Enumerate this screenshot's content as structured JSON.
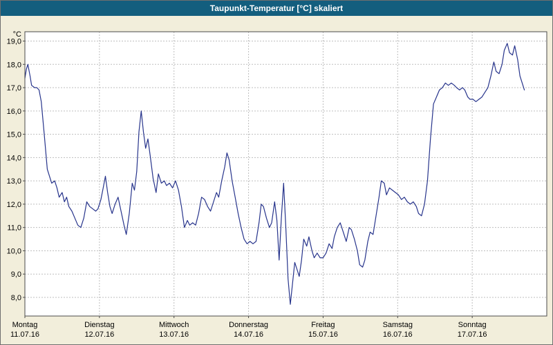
{
  "window": {
    "title": "Taupunkt-Temperatur [°C] skaliert"
  },
  "colors": {
    "titlebar_bg": "#135E7E",
    "title_text": "#FFFFFF",
    "chart_bg": "#F2EEDB",
    "plot_bg": "#FFFFFF",
    "grid": "#BDBDBD",
    "plot_border": "#4a4a4a",
    "axis_text": "#000000",
    "line": "#26338B"
  },
  "chart_data": {
    "type": "line",
    "title": "Taupunkt-Temperatur [°C] skaliert",
    "y_unit_label": "°C",
    "ylim": [
      7.2,
      19.4
    ],
    "xlim_days": [
      0,
      7
    ],
    "grid": "dashed",
    "legend": "none",
    "y_ticks": [
      8,
      9,
      10,
      11,
      12,
      13,
      14,
      15,
      16,
      17,
      18,
      19
    ],
    "y_tick_labels": [
      "8,0",
      "9,0",
      "10,0",
      "11,0",
      "12,0",
      "13,0",
      "14,0",
      "15,0",
      "16,0",
      "17,0",
      "18,0",
      "19,0"
    ],
    "x_days": [
      {
        "name": "Montag",
        "date": "11.07.16"
      },
      {
        "name": "Dienstag",
        "date": "12.07.16"
      },
      {
        "name": "Mittwoch",
        "date": "13.07.16"
      },
      {
        "name": "Donnerstag",
        "date": "14.07.16"
      },
      {
        "name": "Freitag",
        "date": "15.07.16"
      },
      {
        "name": "Samstag",
        "date": "16.07.16"
      },
      {
        "name": "Sonntag",
        "date": "17.07.16"
      }
    ],
    "series": [
      {
        "name": "Taupunkt-Temperatur",
        "color": "#26338B",
        "points": [
          [
            0.0,
            17.4
          ],
          [
            0.02,
            17.8
          ],
          [
            0.04,
            18.0
          ],
          [
            0.07,
            17.5
          ],
          [
            0.09,
            17.1
          ],
          [
            0.13,
            17.0
          ],
          [
            0.16,
            17.0
          ],
          [
            0.19,
            16.9
          ],
          [
            0.22,
            16.4
          ],
          [
            0.26,
            15.0
          ],
          [
            0.3,
            13.5
          ],
          [
            0.33,
            13.2
          ],
          [
            0.36,
            12.9
          ],
          [
            0.4,
            13.0
          ],
          [
            0.43,
            12.7
          ],
          [
            0.46,
            12.3
          ],
          [
            0.5,
            12.5
          ],
          [
            0.53,
            12.1
          ],
          [
            0.56,
            12.3
          ],
          [
            0.59,
            11.9
          ],
          [
            0.63,
            11.7
          ],
          [
            0.67,
            11.4
          ],
          [
            0.71,
            11.1
          ],
          [
            0.75,
            11.0
          ],
          [
            0.79,
            11.4
          ],
          [
            0.83,
            12.1
          ],
          [
            0.87,
            11.9
          ],
          [
            0.91,
            11.8
          ],
          [
            0.95,
            11.7
          ],
          [
            0.98,
            11.8
          ],
          [
            1.02,
            12.2
          ],
          [
            1.05,
            12.7
          ],
          [
            1.08,
            13.2
          ],
          [
            1.11,
            12.5
          ],
          [
            1.14,
            11.9
          ],
          [
            1.17,
            11.6
          ],
          [
            1.21,
            12.0
          ],
          [
            1.25,
            12.3
          ],
          [
            1.29,
            11.7
          ],
          [
            1.33,
            11.1
          ],
          [
            1.36,
            10.7
          ],
          [
            1.4,
            11.6
          ],
          [
            1.44,
            12.9
          ],
          [
            1.47,
            12.6
          ],
          [
            1.5,
            13.4
          ],
          [
            1.53,
            15.1
          ],
          [
            1.56,
            16.0
          ],
          [
            1.59,
            15.1
          ],
          [
            1.62,
            14.4
          ],
          [
            1.65,
            14.8
          ],
          [
            1.68,
            14.1
          ],
          [
            1.72,
            13.1
          ],
          [
            1.76,
            12.5
          ],
          [
            1.79,
            13.3
          ],
          [
            1.83,
            12.9
          ],
          [
            1.87,
            13.0
          ],
          [
            1.9,
            12.8
          ],
          [
            1.94,
            12.9
          ],
          [
            1.98,
            12.7
          ],
          [
            2.02,
            13.0
          ],
          [
            2.06,
            12.6
          ],
          [
            2.1,
            11.9
          ],
          [
            2.14,
            11.0
          ],
          [
            2.18,
            11.3
          ],
          [
            2.21,
            11.1
          ],
          [
            2.25,
            11.2
          ],
          [
            2.29,
            11.1
          ],
          [
            2.33,
            11.6
          ],
          [
            2.37,
            12.3
          ],
          [
            2.41,
            12.2
          ],
          [
            2.45,
            11.9
          ],
          [
            2.49,
            11.7
          ],
          [
            2.53,
            12.1
          ],
          [
            2.57,
            12.5
          ],
          [
            2.6,
            12.3
          ],
          [
            2.64,
            13.0
          ],
          [
            2.68,
            13.6
          ],
          [
            2.71,
            14.2
          ],
          [
            2.74,
            13.9
          ],
          [
            2.78,
            13.0
          ],
          [
            2.82,
            12.3
          ],
          [
            2.86,
            11.6
          ],
          [
            2.9,
            11.0
          ],
          [
            2.94,
            10.5
          ],
          [
            2.98,
            10.3
          ],
          [
            3.02,
            10.4
          ],
          [
            3.06,
            10.3
          ],
          [
            3.1,
            10.4
          ],
          [
            3.14,
            11.2
          ],
          [
            3.17,
            12.0
          ],
          [
            3.2,
            11.9
          ],
          [
            3.24,
            11.4
          ],
          [
            3.28,
            11.0
          ],
          [
            3.31,
            11.2
          ],
          [
            3.35,
            12.1
          ],
          [
            3.38,
            11.3
          ],
          [
            3.41,
            9.6
          ],
          [
            3.44,
            11.4
          ],
          [
            3.47,
            12.9
          ],
          [
            3.5,
            11.0
          ],
          [
            3.53,
            8.8
          ],
          [
            3.56,
            7.7
          ],
          [
            3.59,
            8.6
          ],
          [
            3.62,
            9.5
          ],
          [
            3.65,
            9.2
          ],
          [
            3.68,
            8.9
          ],
          [
            3.71,
            9.6
          ],
          [
            3.74,
            10.5
          ],
          [
            3.78,
            10.2
          ],
          [
            3.81,
            10.6
          ],
          [
            3.85,
            10.0
          ],
          [
            3.88,
            9.7
          ],
          [
            3.92,
            9.9
          ],
          [
            3.96,
            9.7
          ],
          [
            4.0,
            9.7
          ],
          [
            4.04,
            9.9
          ],
          [
            4.08,
            10.3
          ],
          [
            4.12,
            10.1
          ],
          [
            4.15,
            10.6
          ],
          [
            4.19,
            11.0
          ],
          [
            4.23,
            11.2
          ],
          [
            4.27,
            10.8
          ],
          [
            4.31,
            10.4
          ],
          [
            4.35,
            11.0
          ],
          [
            4.38,
            10.9
          ],
          [
            4.42,
            10.5
          ],
          [
            4.46,
            10.0
          ],
          [
            4.49,
            9.4
          ],
          [
            4.53,
            9.3
          ],
          [
            4.56,
            9.6
          ],
          [
            4.6,
            10.4
          ],
          [
            4.63,
            10.8
          ],
          [
            4.67,
            10.7
          ],
          [
            4.71,
            11.5
          ],
          [
            4.75,
            12.3
          ],
          [
            4.78,
            13.0
          ],
          [
            4.82,
            12.9
          ],
          [
            4.85,
            12.4
          ],
          [
            4.89,
            12.7
          ],
          [
            4.93,
            12.6
          ],
          [
            4.97,
            12.5
          ],
          [
            5.01,
            12.4
          ],
          [
            5.05,
            12.2
          ],
          [
            5.09,
            12.3
          ],
          [
            5.13,
            12.1
          ],
          [
            5.17,
            12.0
          ],
          [
            5.21,
            12.1
          ],
          [
            5.25,
            11.9
          ],
          [
            5.28,
            11.6
          ],
          [
            5.32,
            11.5
          ],
          [
            5.36,
            12.0
          ],
          [
            5.4,
            13.0
          ],
          [
            5.44,
            14.8
          ],
          [
            5.48,
            16.3
          ],
          [
            5.52,
            16.6
          ],
          [
            5.56,
            16.9
          ],
          [
            5.6,
            17.0
          ],
          [
            5.64,
            17.2
          ],
          [
            5.68,
            17.1
          ],
          [
            5.72,
            17.2
          ],
          [
            5.76,
            17.1
          ],
          [
            5.79,
            17.0
          ],
          [
            5.83,
            16.9
          ],
          [
            5.87,
            17.0
          ],
          [
            5.9,
            16.9
          ],
          [
            5.94,
            16.6
          ],
          [
            5.97,
            16.5
          ],
          [
            6.01,
            16.5
          ],
          [
            6.05,
            16.4
          ],
          [
            6.09,
            16.5
          ],
          [
            6.13,
            16.6
          ],
          [
            6.17,
            16.8
          ],
          [
            6.21,
            17.0
          ],
          [
            6.25,
            17.5
          ],
          [
            6.29,
            18.1
          ],
          [
            6.32,
            17.7
          ],
          [
            6.36,
            17.6
          ],
          [
            6.4,
            18.0
          ],
          [
            6.43,
            18.6
          ],
          [
            6.47,
            18.9
          ],
          [
            6.5,
            18.5
          ],
          [
            6.54,
            18.4
          ],
          [
            6.57,
            18.8
          ],
          [
            6.61,
            18.2
          ],
          [
            6.64,
            17.5
          ],
          [
            6.68,
            17.1
          ],
          [
            6.7,
            16.9
          ]
        ]
      }
    ]
  }
}
